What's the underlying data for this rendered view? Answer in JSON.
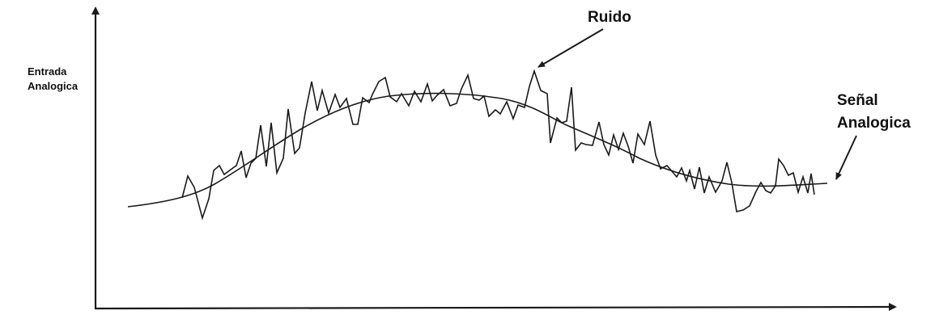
{
  "colors": {
    "line": "#1a1a1a",
    "background": "#ffffff"
  },
  "y_axis_label": {
    "line1": "Entrada",
    "line2": "Analogica"
  },
  "annotations": {
    "noise_label": "Ruido",
    "signal_label_line1": "Señal",
    "signal_label_line2": "Analogica"
  },
  "series": [
    {
      "kind": "analog-signal",
      "shape": "smooth-hump"
    },
    {
      "kind": "noise",
      "shape": "jagged-fluctuations"
    }
  ]
}
